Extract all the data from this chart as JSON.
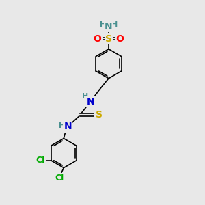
{
  "bg_color": "#e8e8e8",
  "line_color": "#000000",
  "bw": 1.2,
  "colors": {
    "N": "#4a9090",
    "O": "#ff0000",
    "S": "#ccaa00",
    "Cl": "#00aa00",
    "H": "#4a9090",
    "blue_N": "#0000cc"
  },
  "figsize": [
    3.0,
    3.0
  ],
  "dpi": 100,
  "xlim": [
    0,
    10
  ],
  "ylim": [
    0,
    10
  ]
}
